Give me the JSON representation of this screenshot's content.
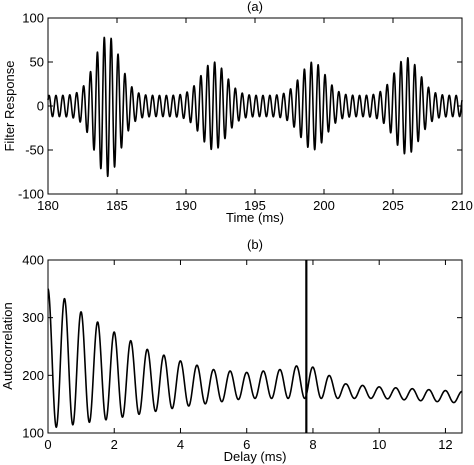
{
  "chart_data": [
    {
      "type": "line",
      "title": "(a)",
      "xlabel": "Time (ms)",
      "ylabel": "Filter Response",
      "xlim": [
        180,
        210
      ],
      "ylim": [
        -100,
        100
      ],
      "xticks": [
        "180",
        "185",
        "190",
        "195",
        "200",
        "205",
        "210"
      ],
      "yticks": [
        "-100",
        "-50",
        "0",
        "50",
        "100"
      ],
      "grid": false,
      "series": [
        {
          "description_of_signal": "band-pass filtered oscillation with periodic envelope bursts",
          "carrier_period_ms": 0.5,
          "baseline_amplitude": 12,
          "bursts": [
            {
              "center_ms": 184.3,
              "peak_amplitude": 80
            },
            {
              "center_ms": 192.0,
              "peak_amplitude": 50
            },
            {
              "center_ms": 199.2,
              "peak_amplitude": 50
            },
            {
              "center_ms": 206.0,
              "peak_amplitude": 55
            }
          ],
          "color": "#000000"
        }
      ]
    },
    {
      "type": "line",
      "title": "(b)",
      "xlabel": "Delay (ms)",
      "ylabel": "Autocorrelation",
      "xlim": [
        0,
        12.5
      ],
      "ylim": [
        100,
        400
      ],
      "xticks": [
        "0",
        "2",
        "4",
        "6",
        "8",
        "10",
        "12"
      ],
      "yticks": [
        "100",
        "200",
        "300",
        "400"
      ],
      "grid": false,
      "series": [
        {
          "oscillation_period_ms": 0.5,
          "start_value": 350,
          "mean_level": 190,
          "peak_values": [
            {
              "x": 0.0,
              "y": 350
            },
            {
              "x": 0.5,
              "y": 333
            },
            {
              "x": 1.0,
              "y": 310
            },
            {
              "x": 2.0,
              "y": 275
            },
            {
              "x": 3.0,
              "y": 245
            },
            {
              "x": 4.0,
              "y": 225
            },
            {
              "x": 5.0,
              "y": 210
            },
            {
              "x": 6.0,
              "y": 205
            },
            {
              "x": 7.0,
              "y": 210
            },
            {
              "x": 7.8,
              "y": 220
            },
            {
              "x": 9.0,
              "y": 185
            },
            {
              "x": 10.0,
              "y": 180
            },
            {
              "x": 12.5,
              "y": 172
            }
          ],
          "trough_values": [
            {
              "x": 0.25,
              "y": 110
            },
            {
              "x": 2.0,
              "y": 125
            },
            {
              "x": 4.0,
              "y": 145
            },
            {
              "x": 6.0,
              "y": 160
            },
            {
              "x": 8.0,
              "y": 160
            },
            {
              "x": 10.0,
              "y": 160
            },
            {
              "x": 12.5,
              "y": 152
            }
          ],
          "color": "#000000"
        }
      ],
      "vertical_marker": {
        "x": 7.8,
        "color": "#000000"
      }
    }
  ]
}
